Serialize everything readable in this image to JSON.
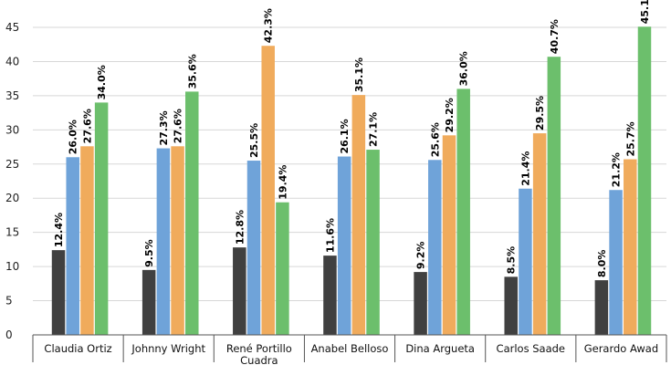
{
  "chart_data": {
    "type": "bar",
    "title": "",
    "xlabel": "",
    "ylabel": "",
    "ylim": [
      0,
      45
    ],
    "yticks": [
      0,
      5,
      10,
      15,
      20,
      25,
      30,
      35,
      40,
      45
    ],
    "grid": true,
    "legend": "none",
    "categories": [
      [
        "Claudia Ortiz"
      ],
      [
        "Johnny Wright"
      ],
      [
        "René Portillo",
        "Cuadra"
      ],
      [
        "Anabel Belloso"
      ],
      [
        "Dina Argueta"
      ],
      [
        "Carlos Saade"
      ],
      [
        "Gerardo Awad"
      ]
    ],
    "series": [
      {
        "color": "#404040",
        "values": [
          12.4,
          9.5,
          12.8,
          11.6,
          9.2,
          8.5,
          8.0
        ]
      },
      {
        "color": "#6fa3d9",
        "values": [
          26.0,
          27.3,
          25.5,
          26.1,
          25.6,
          21.4,
          21.2
        ]
      },
      {
        "color": "#f0ab5c",
        "values": [
          27.6,
          27.6,
          42.3,
          35.1,
          29.2,
          29.5,
          25.7
        ]
      },
      {
        "color": "#6cbf6c",
        "values": [
          34.0,
          35.6,
          19.4,
          27.1,
          36.0,
          40.7,
          45.1
        ]
      }
    ],
    "data_label_suffix": "%"
  }
}
